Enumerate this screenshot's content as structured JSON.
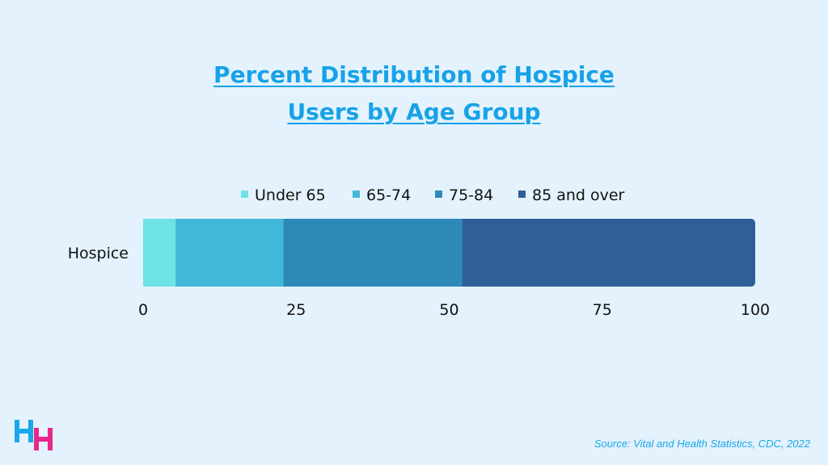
{
  "title_line1": "Percent Distribution of Hospice",
  "title_line2": "Users by Age Group",
  "source": "Source: Vital and Health Statistics, CDC, 2022",
  "logo": {
    "text": "HH",
    "colors": [
      "#1aa7e8",
      "#e8288a"
    ]
  },
  "chart_data": {
    "type": "bar",
    "orientation": "horizontal",
    "stacked": true,
    "categories": [
      "Hospice"
    ],
    "series": [
      {
        "name": "Under 65",
        "values": [
          5.3
        ],
        "color": "#6de3e8"
      },
      {
        "name": "65-74",
        "values": [
          17.6
        ],
        "color": "#42b8d8"
      },
      {
        "name": "75-84",
        "values": [
          29.2
        ],
        "color": "#2d8ab8"
      },
      {
        "name": "85 and over",
        "values": [
          47.9
        ],
        "color": "#2e5f96"
      }
    ],
    "xlim": [
      0,
      100
    ],
    "xticks": [
      "0",
      "25",
      "50",
      "75",
      "100"
    ],
    "xlabel": "",
    "ylabel": "",
    "legend_position": "top",
    "grid": false
  }
}
